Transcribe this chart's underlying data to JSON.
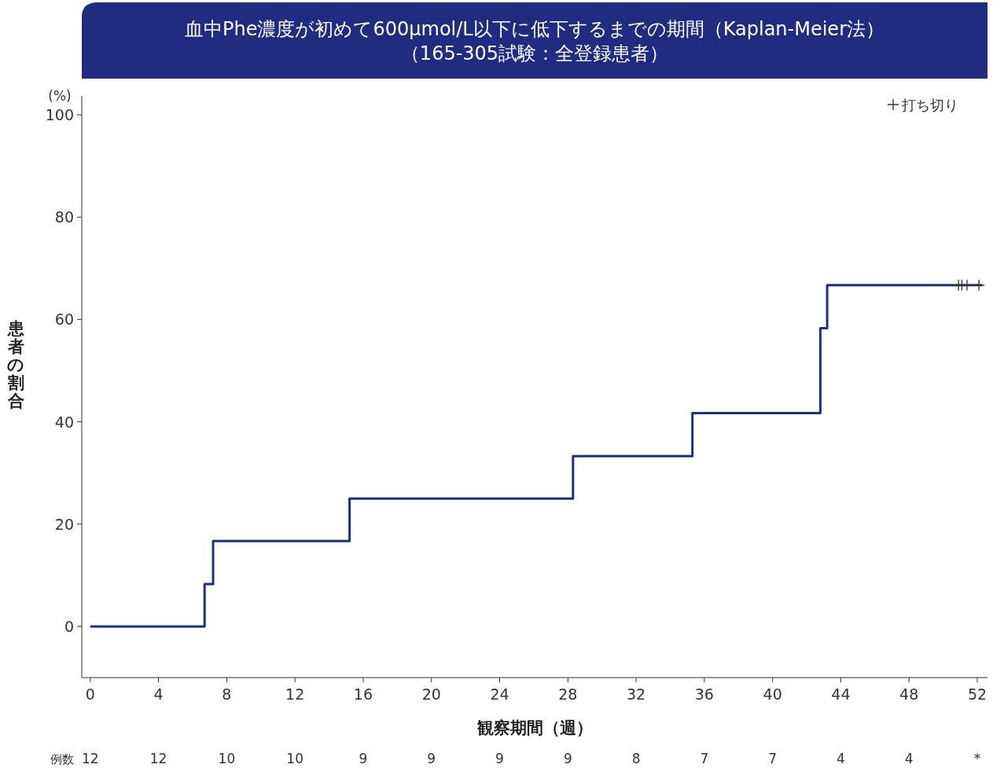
{
  "chart_data": {
    "type": "step",
    "title": "血中Phe濃度が初めて600μmol/L以下に低下するまでの期間（Kaplan-Meier法）",
    "subtitle": "（165-305試験：全登録患者）",
    "xlabel": "観察期間（週）",
    "ylabel": "患者の割合",
    "xlim": [
      -0.5,
      52.6
    ],
    "xticks": [
      0,
      4,
      8,
      12,
      16,
      20,
      24,
      28,
      32,
      36,
      40,
      44,
      48,
      52
    ],
    "ylim": [
      -10,
      103.7
    ],
    "yticks": [
      0,
      20,
      40,
      60,
      80,
      100
    ],
    "series": [
      {
        "type": "step",
        "color": "#1f2d86",
        "x": [
          0,
          6.7,
          7.2,
          15.2,
          28.3,
          35.3,
          42.8,
          43.2,
          52.3
        ],
        "values": [
          0,
          8.3,
          16.7,
          25,
          33.3,
          41.7,
          58.3,
          66.7,
          66.7
        ]
      },
      {
        "type": "scatter",
        "name": "打ち切り",
        "color": "#333333",
        "marker": "cross",
        "x": [
          50.9,
          51.1,
          51.4,
          52.1
        ],
        "values": [
          66.7,
          66.7,
          66.7,
          66.7
        ]
      }
    ],
    "legend": "top right",
    "grid": false,
    "annotations": [
      "(%)",
      "例数",
      "12",
      "12",
      "10",
      "10",
      "9",
      "9",
      "9",
      "9",
      "8",
      "7",
      "7",
      "4",
      "4",
      "*"
    ]
  }
}
